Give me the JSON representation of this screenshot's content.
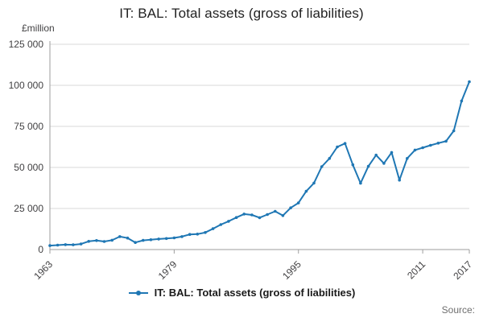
{
  "footer": {
    "source_label": "Source:"
  },
  "chart_data": {
    "type": "line",
    "title": "IT: BAL: Total assets (gross of liabilities)",
    "ylabel": "£million",
    "xlabel": "",
    "legend": "IT: BAL: Total assets (gross of liabilities)",
    "legend_position": "bottom",
    "grid": true,
    "ylim": [
      0,
      125000
    ],
    "y_ticks": [
      0,
      25000,
      50000,
      75000,
      100000,
      125000
    ],
    "y_tick_labels": [
      "0",
      "25 000",
      "50 000",
      "75 000",
      "100 000",
      "125 000"
    ],
    "x_ticks": [
      1963,
      1979,
      1995,
      2011,
      2017
    ],
    "line_color": "#1f77b4",
    "grid_color": "#d9d9d9",
    "axis_color": "#9e9e9e",
    "tick_color": "#414042",
    "marker": "circle",
    "x": [
      1963,
      1964,
      1965,
      1966,
      1967,
      1968,
      1969,
      1970,
      1971,
      1972,
      1973,
      1974,
      1975,
      1976,
      1977,
      1978,
      1979,
      1980,
      1981,
      1982,
      1983,
      1984,
      1985,
      1986,
      1987,
      1988,
      1989,
      1990,
      1991,
      1992,
      1993,
      1994,
      1995,
      1996,
      1997,
      1998,
      1999,
      2000,
      2001,
      2002,
      2003,
      2004,
      2005,
      2006,
      2007,
      2008,
      2009,
      2010,
      2011,
      2012,
      2013,
      2014,
      2015,
      2016,
      2017
    ],
    "values": [
      2400,
      2700,
      3000,
      2900,
      3400,
      5000,
      5500,
      4900,
      5700,
      7900,
      7000,
      4300,
      5600,
      6000,
      6400,
      6700,
      7100,
      7900,
      9200,
      9400,
      10400,
      12700,
      15200,
      17200,
      19500,
      21600,
      21100,
      19400,
      21300,
      23300,
      20700,
      25400,
      28400,
      35500,
      40500,
      50500,
      55500,
      62500,
      64600,
      51600,
      40400,
      50700,
      57500,
      52500,
      59100,
      42300,
      55500,
      60600,
      62000,
      63500,
      64800,
      66000,
      72300,
      90500,
      102200
    ]
  }
}
